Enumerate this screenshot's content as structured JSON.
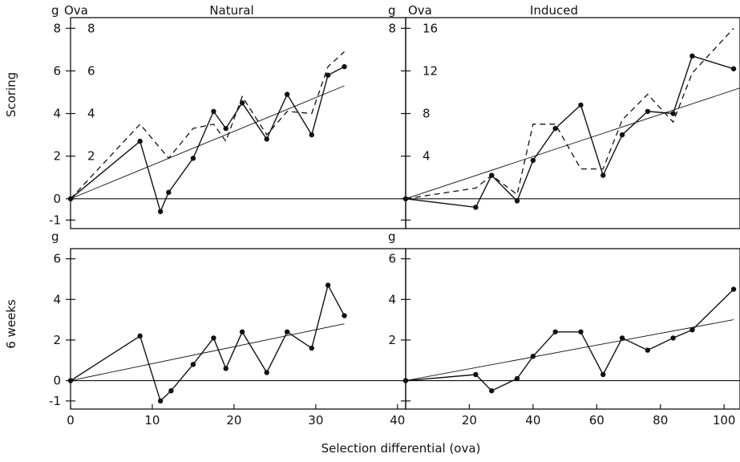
{
  "chart_data": [
    {
      "type": "line",
      "panel": "scoring-natural",
      "title": "Natural",
      "ylabel": "Scoring",
      "left_unit": "g",
      "right_unit": "Ova",
      "xlim": [
        0,
        41
      ],
      "ylim": [
        -1.4,
        8.5
      ],
      "yticks": [
        -1,
        0,
        2,
        4,
        6,
        8
      ],
      "ytick_labels": [
        "-1",
        "0",
        "2",
        "4",
        "6",
        "8"
      ],
      "ova_ticks": [
        2,
        4,
        6,
        8
      ],
      "ova_scale": 1,
      "series": [
        {
          "style": "solid-points",
          "x": [
            0,
            8.5,
            11,
            12,
            15,
            17.5,
            19,
            21,
            24,
            26.5,
            29.5,
            31.5,
            33.5
          ],
          "y": [
            0,
            2.7,
            -0.6,
            0.3,
            1.9,
            4.1,
            3.3,
            4.5,
            2.8,
            4.9,
            3.0,
            5.8,
            6.2
          ]
        },
        {
          "style": "dashed",
          "x": [
            0,
            8.5,
            12,
            15,
            17.5,
            19,
            21,
            24,
            26.5,
            29.5,
            31.5,
            33.5
          ],
          "y": [
            0,
            3.5,
            1.9,
            3.3,
            3.5,
            2.7,
            4.8,
            3.0,
            4.1,
            4.0,
            6.2,
            6.9
          ]
        },
        {
          "style": "regression",
          "x": [
            0,
            33.5
          ],
          "y": [
            0,
            5.3
          ]
        }
      ]
    },
    {
      "type": "line",
      "panel": "scoring-induced",
      "title": "Induced",
      "left_unit": "g",
      "right_unit": "Ova",
      "xlim": [
        0,
        105
      ],
      "ylim": [
        -1.4,
        8.5
      ],
      "yticks": [
        -1,
        0,
        2,
        4,
        6,
        8
      ],
      "ytick_labels": [
        "",
        "",
        "",
        "",
        "",
        "8"
      ],
      "ova_ticks": [
        4,
        8,
        12,
        16
      ],
      "ova_scale": 2,
      "series": [
        {
          "style": "solid-points",
          "x": [
            0,
            22,
            27,
            35,
            40,
            47,
            55,
            62,
            68,
            76,
            84,
            90,
            103
          ],
          "y": [
            0,
            -0.4,
            1.1,
            -0.1,
            1.8,
            3.3,
            4.4,
            1.1,
            3.0,
            4.1,
            4.0,
            6.7,
            6.1
          ]
        },
        {
          "style": "dashed",
          "x": [
            0,
            22,
            27,
            35,
            40,
            47,
            55,
            62,
            68,
            76,
            84,
            90,
            103
          ],
          "y": [
            0,
            0.5,
            1.1,
            0.2,
            3.5,
            3.5,
            1.4,
            1.4,
            3.7,
            4.9,
            3.6,
            5.9,
            8.0
          ]
        },
        {
          "style": "regression",
          "x": [
            0,
            105
          ],
          "y": [
            0,
            5.2
          ]
        }
      ]
    },
    {
      "type": "line",
      "panel": "6weeks-natural",
      "ylabel": "6 weeks",
      "left_unit": "g",
      "xlabel": "Selection differential (ova)",
      "xlim": [
        0,
        41
      ],
      "xticks": [
        0,
        10,
        20,
        30,
        40
      ],
      "ylim": [
        -1.4,
        6.5
      ],
      "yticks": [
        -1,
        0,
        2,
        4,
        6
      ],
      "ytick_labels": [
        "-1",
        "0",
        "2",
        "4",
        "6"
      ],
      "series": [
        {
          "style": "solid-points",
          "x": [
            0,
            8.5,
            11,
            12.3,
            15,
            17.5,
            19,
            21,
            24,
            26.5,
            29.5,
            31.5,
            33.5
          ],
          "y": [
            0,
            2.2,
            -1.0,
            -0.5,
            0.8,
            2.1,
            0.6,
            2.4,
            0.4,
            2.4,
            1.6,
            4.7,
            3.2
          ]
        },
        {
          "style": "regression",
          "x": [
            0,
            33.5
          ],
          "y": [
            0,
            2.8
          ]
        }
      ]
    },
    {
      "type": "line",
      "panel": "6weeks-induced",
      "left_unit": "g",
      "xlim": [
        0,
        105
      ],
      "xticks": [
        20,
        40,
        60,
        80,
        100
      ],
      "ylim": [
        -1.4,
        6.5
      ],
      "yticks": [
        -1,
        0,
        2,
        4,
        6
      ],
      "ytick_labels": [
        "",
        "",
        "2",
        "4",
        "6"
      ],
      "series": [
        {
          "style": "solid-points",
          "x": [
            0,
            22,
            27,
            35,
            40,
            47,
            55,
            62,
            68,
            76,
            84,
            90,
            103
          ],
          "y": [
            0,
            0.3,
            -0.5,
            0.1,
            1.2,
            2.4,
            2.4,
            0.3,
            2.1,
            1.5,
            2.1,
            2.5,
            4.5
          ]
        },
        {
          "style": "regression",
          "x": [
            0,
            103
          ],
          "y": [
            0,
            3.0
          ]
        }
      ]
    }
  ]
}
